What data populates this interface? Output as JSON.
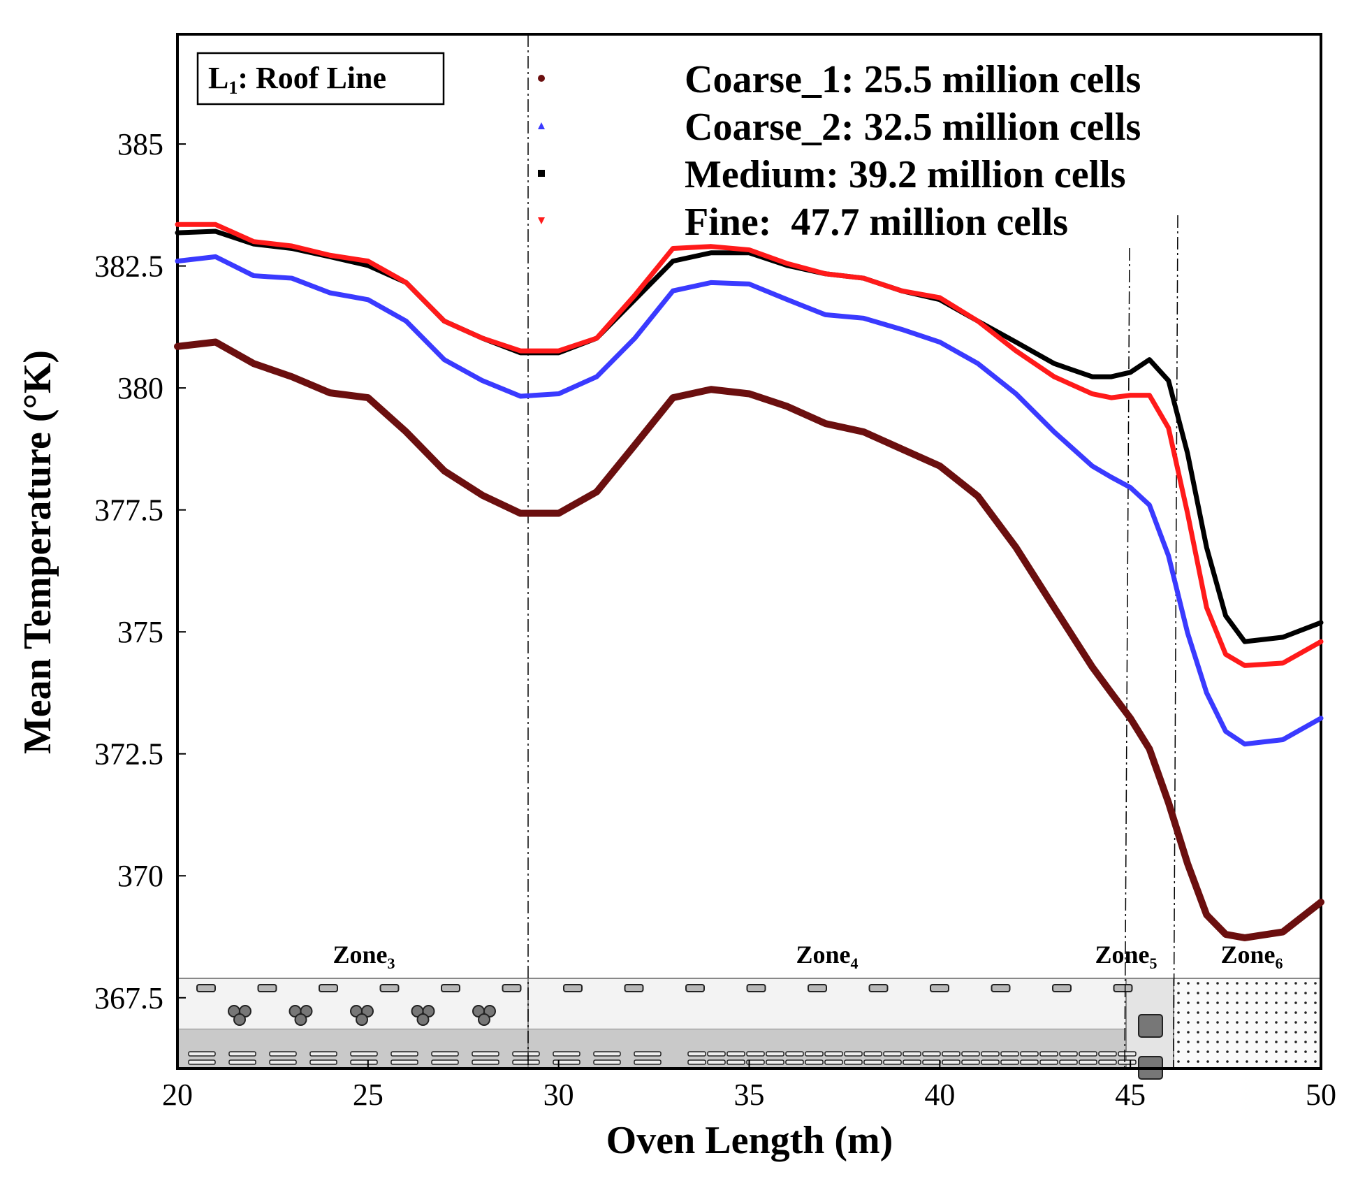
{
  "chart_data": {
    "type": "line",
    "xlabel": "Oven Length (m)",
    "ylabel": "Mean Temperature (°K)",
    "box_label": {
      "main": "L",
      "sub": "1",
      "rest": ": Roof Line"
    },
    "zones": [
      {
        "label": "Zone",
        "sub": "3"
      },
      {
        "label": "Zone",
        "sub": "4"
      },
      {
        "label": "Zone",
        "sub": "5"
      },
      {
        "label": "Zone",
        "sub": "6"
      }
    ],
    "x": [
      20,
      21,
      22,
      23,
      24,
      25,
      26,
      27,
      28,
      29,
      30,
      31,
      32,
      33,
      34,
      35,
      36,
      37,
      38,
      39,
      40,
      41,
      42,
      43,
      44,
      44.5,
      45,
      45.5,
      46,
      46.5,
      47,
      47.5,
      48,
      49,
      50
    ],
    "series": [
      {
        "name": "Coarse_1: 25.5 million cells",
        "color": "#6b0f0f",
        "marker": "circle",
        "values": [
          380.85,
          380.94,
          380.5,
          380.23,
          379.9,
          379.8,
          379.1,
          378.3,
          377.8,
          377.43,
          377.43,
          377.87,
          378.83,
          379.8,
          379.97,
          379.88,
          379.62,
          379.27,
          379.1,
          378.75,
          378.4,
          377.78,
          376.73,
          375.5,
          374.28,
          373.75,
          373.23,
          372.6,
          371.5,
          370.25,
          369.2,
          368.8,
          368.73,
          368.85,
          369.46
        ]
      },
      {
        "name": "Coarse_2: 32.5 million cells",
        "color": "#3a3aff",
        "marker": "triangle-up",
        "values": [
          382.6,
          382.69,
          382.3,
          382.25,
          381.95,
          381.81,
          381.37,
          380.58,
          380.15,
          379.83,
          379.88,
          380.23,
          381.02,
          381.99,
          382.16,
          382.13,
          381.81,
          381.5,
          381.43,
          381.2,
          380.94,
          380.5,
          379.88,
          379.1,
          378.4,
          378.17,
          377.96,
          377.6,
          376.56,
          374.98,
          373.75,
          372.96,
          372.7,
          372.79,
          373.23
        ]
      },
      {
        "name": "Medium: 39.2 million cells",
        "color": "#000000",
        "marker": "square",
        "values": [
          383.18,
          383.21,
          382.95,
          382.86,
          382.69,
          382.51,
          382.16,
          381.37,
          381.02,
          380.72,
          380.72,
          381.02,
          381.81,
          382.6,
          382.77,
          382.77,
          382.51,
          382.34,
          382.25,
          381.99,
          381.81,
          381.37,
          380.94,
          380.5,
          380.23,
          380.23,
          380.32,
          380.58,
          380.15,
          378.66,
          376.73,
          375.33,
          374.8,
          374.89,
          375.19
        ]
      },
      {
        "name": "Fine:  47.7 million cells",
        "color": "#ff1a1a",
        "marker": "triangle-down",
        "values": [
          383.35,
          383.35,
          383.0,
          382.91,
          382.72,
          382.6,
          382.16,
          381.37,
          381.02,
          380.76,
          380.76,
          381.02,
          381.9,
          382.86,
          382.9,
          382.83,
          382.55,
          382.34,
          382.25,
          381.99,
          381.85,
          381.37,
          380.76,
          380.23,
          379.88,
          379.8,
          379.85,
          379.85,
          379.18,
          377.43,
          375.5,
          374.54,
          374.31,
          374.36,
          374.8
        ]
      }
    ],
    "xlim": [
      20,
      50
    ],
    "ylim": [
      366.05,
      387.25
    ],
    "xticks": [
      20,
      25,
      30,
      35,
      40,
      45,
      50
    ],
    "yticks": [
      367.5,
      370,
      372.5,
      375,
      377.5,
      380,
      382.5,
      385
    ],
    "grid": false
  }
}
